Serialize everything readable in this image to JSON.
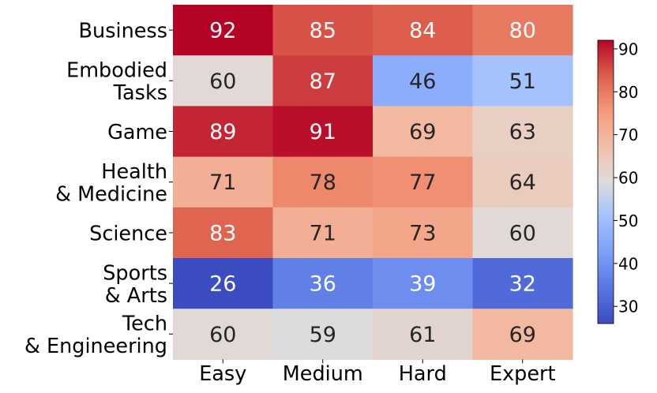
{
  "chart_data": {
    "type": "heatmap",
    "title": "",
    "xlabel": "",
    "ylabel": "",
    "colormap": "coolwarm",
    "rows": [
      [
        "Business"
      ],
      [
        "Embodied",
        "Tasks"
      ],
      [
        "Game"
      ],
      [
        "Health",
        "& Medicine"
      ],
      [
        "Science"
      ],
      [
        "Sports",
        "& Arts"
      ],
      [
        "Tech",
        "& Engineering"
      ]
    ],
    "columns": [
      "Easy",
      "Medium",
      "Hard",
      "Expert"
    ],
    "values": [
      [
        92,
        85,
        84,
        80
      ],
      [
        60,
        87,
        46,
        51
      ],
      [
        89,
        91,
        69,
        63
      ],
      [
        71,
        78,
        77,
        64
      ],
      [
        83,
        71,
        73,
        60
      ],
      [
        26,
        36,
        39,
        32
      ],
      [
        60,
        59,
        61,
        69
      ]
    ],
    "colorbar": {
      "range": [
        26,
        92
      ],
      "ticks": [
        30,
        40,
        50,
        60,
        70,
        80,
        90
      ]
    }
  }
}
